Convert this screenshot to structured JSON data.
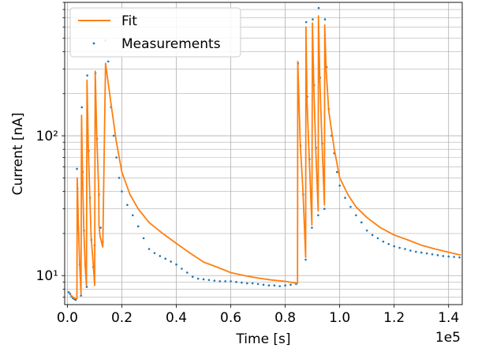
{
  "chart_data": {
    "type": "line",
    "title": "",
    "xlabel": "Time [s]",
    "ylabel": "Current [nA]",
    "x_offset_label": "1e5",
    "xlim": [
      -1000,
      145000
    ],
    "ylim": [
      6.2,
      900
    ],
    "yscale": "log",
    "grid": true,
    "legend_position": "top-left",
    "x_ticks": [
      0,
      20000,
      40000,
      60000,
      80000,
      100000,
      120000,
      140000
    ],
    "x_tick_labels": [
      "0.0",
      "0.2",
      "0.4",
      "0.6",
      "0.8",
      "1.0",
      "1.2",
      "1.4"
    ],
    "y_ticks": [
      10,
      100
    ],
    "y_tick_labels": [
      "10¹",
      "10²"
    ],
    "colors": {
      "fit": "#ff7f0e",
      "measurements": "#1f77b4"
    },
    "series": [
      {
        "name": "Fit",
        "style": "line",
        "x": [
          1000,
          2500,
          3500,
          3600,
          4000,
          4500,
          5000,
          5200,
          5500,
          6000,
          6500,
          7000,
          7200,
          7700,
          8200,
          8700,
          9500,
          10000,
          10200,
          10800,
          11500,
          11600,
          12000,
          13000,
          14000,
          16000,
          18000,
          20000,
          23000,
          26000,
          30000,
          35000,
          40000,
          45000,
          50000,
          55000,
          60000,
          65000,
          70000,
          75000,
          80000,
          84500,
          84600,
          85500,
          86500,
          87500,
          87600,
          88000,
          88800,
          89800,
          90000,
          90500,
          91200,
          92100,
          92200,
          92700,
          93500,
          94400,
          94500,
          95000,
          96000,
          98000,
          100000,
          103000,
          106000,
          110000,
          115000,
          120000,
          125000,
          130000,
          135000,
          140000,
          144500
        ],
        "y": [
          7.3,
          6.9,
          6.8,
          50,
          24,
          12,
          7.4,
          140,
          60,
          22,
          12,
          8.5,
          250,
          80,
          38,
          19,
          12,
          8.5,
          290,
          100,
          40,
          23,
          19,
          16,
          330,
          170,
          90,
          55,
          38,
          30,
          24,
          20,
          17,
          14.5,
          12.5,
          11.5,
          10.5,
          10,
          9.6,
          9.3,
          9.1,
          8.8,
          340,
          90,
          40,
          13.5,
          600,
          180,
          70,
          23,
          640,
          220,
          80,
          29,
          720,
          250,
          90,
          32,
          620,
          300,
          150,
          80,
          50,
          38,
          31,
          26,
          22,
          19.5,
          18,
          16.5,
          15.5,
          14.7,
          14
        ]
      },
      {
        "name": "Measurements",
        "style": "points",
        "x": [
          500,
          1000,
          1500,
          2000,
          2500,
          3000,
          3500,
          3700,
          4000,
          4500,
          5000,
          5300,
          5600,
          6100,
          6600,
          7100,
          7300,
          7800,
          8300,
          8800,
          9500,
          10000,
          10300,
          10900,
          11600,
          12200,
          13000,
          14000,
          15000,
          16000,
          17000,
          18000,
          19000,
          20000,
          22000,
          24000,
          26000,
          28000,
          30000,
          32000,
          34000,
          36000,
          38000,
          40000,
          42000,
          44000,
          46000,
          48000,
          50000,
          52000,
          54000,
          56000,
          58000,
          60000,
          62000,
          64000,
          66000,
          68000,
          70000,
          72000,
          74000,
          76000,
          78000,
          80000,
          82000,
          84000,
          84700,
          85600,
          86600,
          87500,
          87700,
          88100,
          88900,
          89800,
          90100,
          90600,
          91300,
          92100,
          92300,
          92800,
          93600,
          94400,
          94600,
          95200,
          96000,
          97000,
          98000,
          99000,
          100000,
          102000,
          104000,
          106000,
          108000,
          110000,
          112000,
          114000,
          116000,
          118000,
          120000,
          122000,
          124000,
          126000,
          128000,
          130000,
          132000,
          134000,
          136000,
          138000,
          140000,
          142000,
          144000
        ],
        "y": [
          7.6,
          7.4,
          7.1,
          6.9,
          6.8,
          6.7,
          58,
          42,
          22,
          12,
          7.2,
          160,
          55,
          21,
          12,
          8.3,
          270,
          78,
          36,
          18,
          11.5,
          16.5,
          280,
          95,
          38,
          22,
          17.5,
          480,
          340,
          160,
          100,
          70,
          50,
          40,
          32,
          27,
          22.5,
          18.5,
          15.5,
          14.5,
          13.8,
          13.2,
          12.6,
          12,
          11.2,
          10.5,
          9.8,
          9.5,
          9.4,
          9.3,
          9.2,
          9.1,
          9.1,
          9.1,
          9.0,
          8.9,
          8.8,
          8.8,
          8.7,
          8.6,
          8.5,
          8.5,
          8.4,
          8.5,
          8.6,
          8.7,
          330,
          85,
          38,
          13,
          650,
          190,
          68,
          22,
          680,
          230,
          82,
          27,
          820,
          260,
          88,
          30,
          680,
          310,
          155,
          100,
          75,
          55,
          44,
          36,
          31,
          27,
          24,
          21,
          19.5,
          18.5,
          17.5,
          16.8,
          16.2,
          15.8,
          15.5,
          15.1,
          14.8,
          14.6,
          14.4,
          14.2,
          14.0,
          13.8,
          13.7,
          13.6,
          13.5
        ]
      }
    ]
  }
}
